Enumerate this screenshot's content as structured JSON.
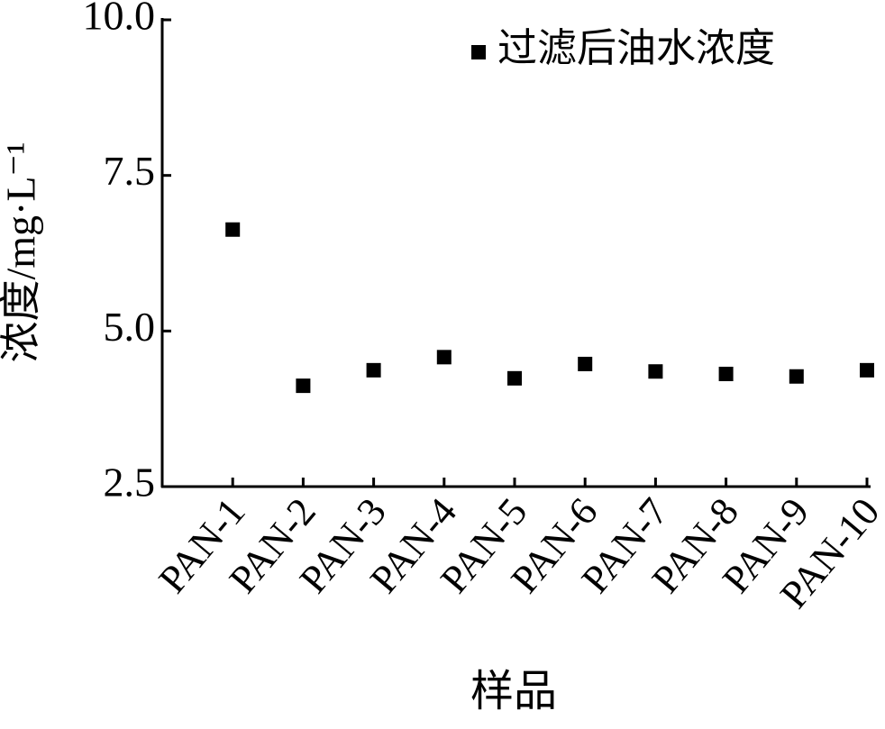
{
  "chart_data": {
    "type": "scatter",
    "x_label": "样品",
    "y_label": "浓度/mg·L⁻¹",
    "categories": [
      "PAN-1",
      "PAN-2",
      "PAN-3",
      "PAN-4",
      "PAN-5",
      "PAN-6",
      "PAN-7",
      "PAN-8",
      "PAN-9",
      "PAN-10"
    ],
    "series": [
      {
        "name": "过滤后油水浓度",
        "color": "#000000",
        "values": [
          6.63,
          4.12,
          4.37,
          4.58,
          4.24,
          4.47,
          4.35,
          4.31,
          4.27,
          4.37
        ]
      }
    ],
    "ylim": [
      2.5,
      10
    ],
    "yticks": [
      {
        "value": 2.5,
        "label": "2.5"
      },
      {
        "value": 5,
        "label": "5.0"
      },
      7.5,
      {
        "value": 10,
        "label": "10.0"
      }
    ],
    "legend": "top-right"
  }
}
